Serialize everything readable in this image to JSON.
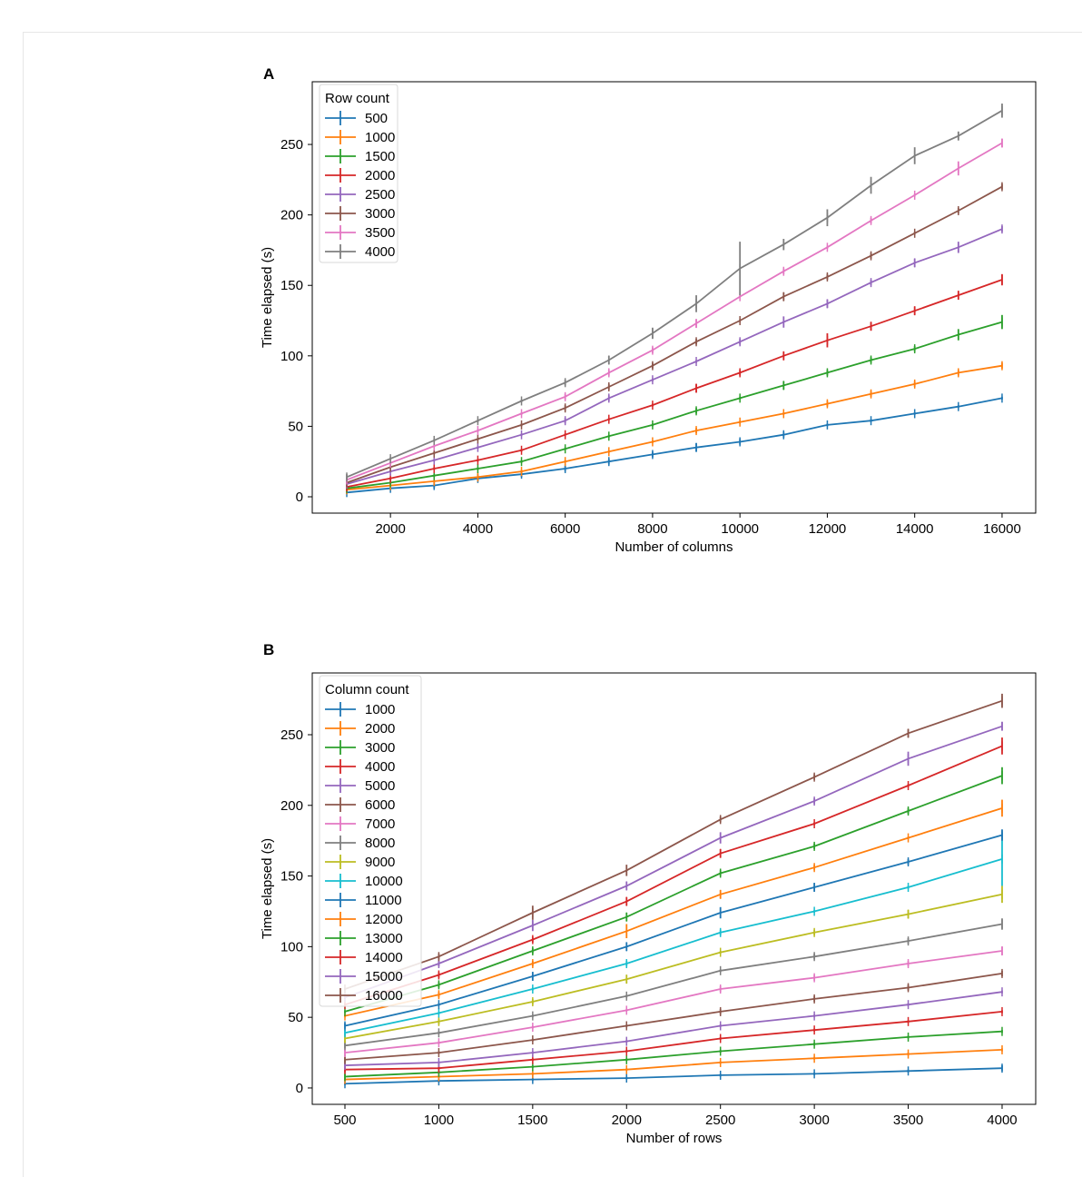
{
  "colors": [
    "#1f77b4",
    "#ff7f0e",
    "#2ca02c",
    "#d62728",
    "#9467bd",
    "#8c564b",
    "#e377c2",
    "#7f7f7f",
    "#bcbd22",
    "#17becf"
  ],
  "chart_data": [
    {
      "panel_label": "A",
      "type": "line",
      "error_bars": true,
      "xlabel": "Number of columns",
      "ylabel": "Time elapsed (s)",
      "xlim": [
        210,
        16770
      ],
      "ylim": [
        -11.6,
        294.5
      ],
      "xticks": [
        2000,
        4000,
        6000,
        8000,
        10000,
        12000,
        14000,
        16000
      ],
      "yticks": [
        0,
        50,
        100,
        150,
        200,
        250
      ],
      "grid": false,
      "legend_title": "Row count",
      "legend_position": "top-left",
      "x": [
        1000,
        2000,
        3000,
        4000,
        5000,
        6000,
        7000,
        8000,
        9000,
        10000,
        11000,
        12000,
        13000,
        14000,
        15000,
        16000
      ],
      "series": [
        {
          "name": "500",
          "values": [
            3,
            6,
            8,
            13,
            16,
            20,
            25,
            30,
            35,
            39,
            44,
            51,
            54,
            59,
            64,
            70
          ],
          "errors": [
            1,
            1,
            2,
            2,
            2,
            2,
            2,
            2,
            3,
            2,
            2,
            1,
            1,
            1,
            1,
            1
          ]
        },
        {
          "name": "1000",
          "values": [
            5,
            8,
            11,
            14,
            18,
            25,
            32,
            39,
            47,
            53,
            59,
            66,
            73,
            80,
            88,
            93
          ],
          "errors": [
            1,
            1,
            1,
            1,
            1,
            1,
            1,
            1,
            2,
            1,
            1,
            2,
            2,
            2,
            2,
            2
          ]
        },
        {
          "name": "1500",
          "values": [
            6,
            10,
            15,
            20,
            25,
            34,
            43,
            51,
            61,
            70,
            79,
            88,
            97,
            105,
            115,
            124
          ],
          "errors": [
            1,
            1,
            1,
            1,
            1,
            1,
            1,
            1,
            2,
            1,
            3,
            2,
            2,
            2,
            4,
            5
          ]
        },
        {
          "name": "2000",
          "values": [
            7,
            13,
            20,
            26,
            33,
            44,
            55,
            65,
            77,
            88,
            100,
            111,
            121,
            132,
            143,
            154
          ],
          "errors": [
            1,
            1,
            1,
            1,
            1,
            1,
            1,
            1,
            3,
            2,
            3,
            5,
            3,
            3,
            3,
            4
          ]
        },
        {
          "name": "2500",
          "values": [
            9,
            18,
            26,
            35,
            44,
            54,
            70,
            83,
            96,
            110,
            124,
            137,
            152,
            166,
            177,
            190
          ],
          "errors": [
            1,
            1,
            1,
            1,
            1,
            2,
            2,
            1,
            1,
            2,
            4,
            3,
            2,
            3,
            4,
            2
          ]
        },
        {
          "name": "3000",
          "values": [
            10,
            21,
            31,
            41,
            51,
            63,
            78,
            93,
            110,
            125,
            142,
            156,
            171,
            187,
            203,
            220
          ],
          "errors": [
            1,
            1,
            1,
            1,
            1,
            2,
            2,
            2,
            2,
            1,
            3,
            2,
            2,
            1,
            2,
            2
          ]
        },
        {
          "name": "3500",
          "values": [
            12,
            24,
            36,
            47,
            59,
            71,
            88,
            104,
            123,
            142,
            160,
            177,
            196,
            214,
            233,
            251
          ],
          "errors": [
            1,
            1,
            1,
            1,
            1,
            2,
            2,
            2,
            3,
            1,
            2,
            1,
            2,
            1,
            5,
            3
          ]
        },
        {
          "name": "4000",
          "values": [
            14,
            27,
            40,
            54,
            68,
            81,
            97,
            116,
            137,
            162,
            179,
            198,
            221,
            242,
            256,
            274
          ],
          "errors": [
            2,
            1,
            1,
            1,
            1,
            2,
            3,
            4,
            6,
            19,
            4,
            6,
            6,
            6,
            3,
            5
          ]
        }
      ]
    },
    {
      "panel_label": "B",
      "type": "line",
      "error_bars": true,
      "xlabel": "Number of rows",
      "ylabel": "Time elapsed (s)",
      "xlim": [
        326,
        4179
      ],
      "ylim": [
        -11.6,
        293.7
      ],
      "xticks": [
        500,
        1000,
        1500,
        2000,
        2500,
        3000,
        3500,
        4000
      ],
      "yticks": [
        0,
        50,
        100,
        150,
        200,
        250
      ],
      "grid": false,
      "legend_title": "Column count",
      "legend_position": "top-left",
      "x": [
        500,
        1000,
        1500,
        2000,
        2500,
        3000,
        3500,
        4000
      ],
      "series": [
        {
          "name": "1000",
          "values": [
            3,
            5,
            6,
            7,
            9,
            10,
            12,
            14
          ],
          "errors": [
            1,
            1,
            1,
            1,
            1,
            1,
            1,
            2
          ]
        },
        {
          "name": "2000",
          "values": [
            6,
            8,
            10,
            13,
            18,
            21,
            24,
            27
          ],
          "errors": [
            1,
            1,
            1,
            1,
            1,
            1,
            1,
            1
          ]
        },
        {
          "name": "3000",
          "values": [
            8,
            11,
            15,
            20,
            26,
            31,
            36,
            40
          ],
          "errors": [
            2,
            1,
            1,
            1,
            1,
            1,
            1,
            1
          ]
        },
        {
          "name": "4000",
          "values": [
            13,
            14,
            20,
            26,
            35,
            41,
            47,
            54
          ],
          "errors": [
            2,
            1,
            1,
            1,
            1,
            1,
            1,
            1
          ]
        },
        {
          "name": "5000",
          "values": [
            16,
            18,
            25,
            33,
            44,
            51,
            59,
            68
          ],
          "errors": [
            2,
            1,
            1,
            1,
            1,
            1,
            1,
            1
          ]
        },
        {
          "name": "6000",
          "values": [
            20,
            25,
            34,
            44,
            54,
            63,
            71,
            81
          ],
          "errors": [
            2,
            1,
            1,
            1,
            2,
            2,
            2,
            2
          ]
        },
        {
          "name": "7000",
          "values": [
            25,
            32,
            43,
            55,
            70,
            78,
            88,
            97
          ],
          "errors": [
            2,
            1,
            1,
            1,
            2,
            2,
            2,
            3
          ]
        },
        {
          "name": "8000",
          "values": [
            30,
            39,
            51,
            65,
            83,
            93,
            104,
            116
          ],
          "errors": [
            2,
            1,
            1,
            1,
            1,
            2,
            2,
            4
          ]
        },
        {
          "name": "9000",
          "values": [
            35,
            47,
            61,
            77,
            96,
            110,
            123,
            137
          ],
          "errors": [
            3,
            2,
            2,
            3,
            1,
            2,
            3,
            6
          ]
        },
        {
          "name": "10000",
          "values": [
            39,
            53,
            70,
            88,
            110,
            125,
            142,
            162
          ],
          "errors": [
            2,
            1,
            1,
            2,
            2,
            1,
            1,
            19
          ]
        },
        {
          "name": "11000",
          "values": [
            44,
            59,
            79,
            100,
            124,
            142,
            160,
            179
          ],
          "errors": [
            2,
            1,
            3,
            3,
            4,
            3,
            2,
            4
          ]
        },
        {
          "name": "12000",
          "values": [
            51,
            66,
            88,
            111,
            137,
            156,
            177,
            198
          ],
          "errors": [
            1,
            2,
            2,
            5,
            3,
            2,
            1,
            6
          ]
        },
        {
          "name": "13000",
          "values": [
            54,
            73,
            97,
            121,
            152,
            171,
            196,
            221
          ],
          "errors": [
            1,
            2,
            2,
            3,
            2,
            2,
            2,
            6
          ]
        },
        {
          "name": "14000",
          "values": [
            59,
            80,
            105,
            132,
            166,
            187,
            214,
            242
          ],
          "errors": [
            1,
            2,
            2,
            3,
            3,
            1,
            1,
            6
          ]
        },
        {
          "name": "15000",
          "values": [
            64,
            88,
            115,
            143,
            177,
            203,
            233,
            256
          ],
          "errors": [
            1,
            2,
            4,
            3,
            4,
            2,
            5,
            3
          ]
        },
        {
          "name": "16000",
          "values": [
            70,
            93,
            124,
            154,
            190,
            220,
            251,
            274
          ],
          "errors": [
            1,
            2,
            5,
            4,
            2,
            2,
            3,
            5
          ]
        }
      ]
    }
  ]
}
